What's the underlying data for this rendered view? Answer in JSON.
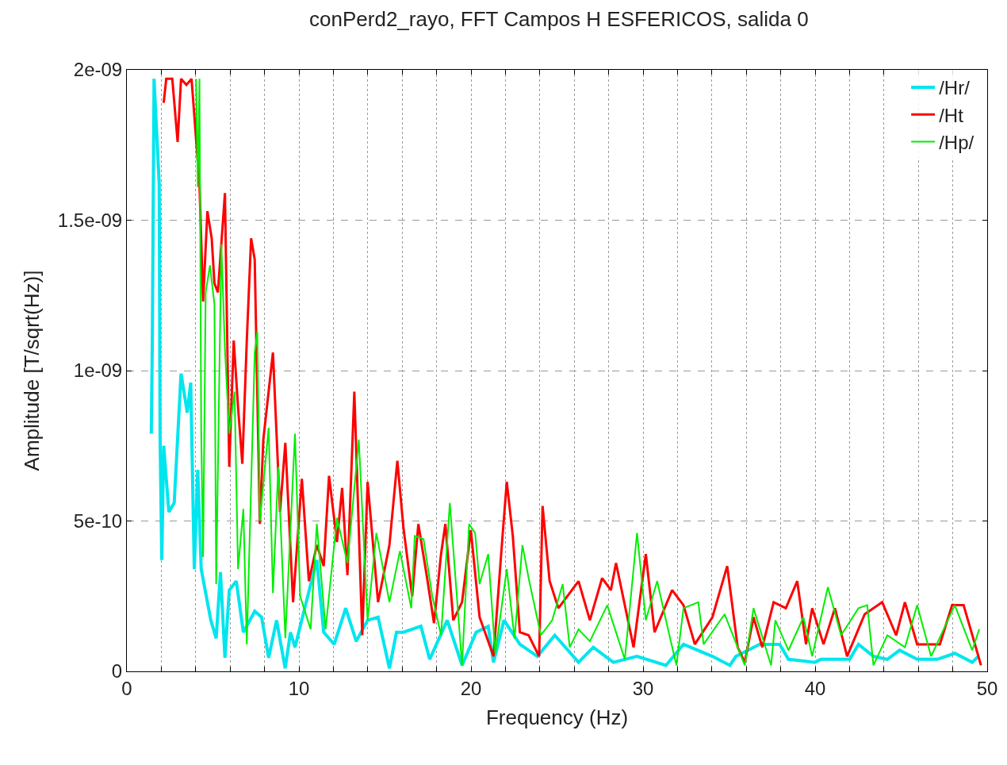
{
  "chart_data": {
    "type": "line",
    "title": "conPerd2_rayo, FFT Campos H ESFERICOS, salida 0",
    "xlabel": "Frequency (Hz)",
    "ylabel": "Amplitude [T/sqrt(Hz)]",
    "xlim": [
      0,
      50
    ],
    "xticks": [
      0,
      {
        "value": 2,
        "label": null
      },
      {
        "value": 4,
        "label": null
      },
      {
        "value": 6,
        "label": null
      },
      {
        "value": 8,
        "label": null
      },
      10,
      {
        "value": 12,
        "label": null
      },
      {
        "value": 14,
        "label": null
      },
      {
        "value": 16,
        "label": null
      },
      {
        "value": 18,
        "label": null
      },
      20,
      {
        "value": 22,
        "label": null
      },
      {
        "value": 24,
        "label": null
      },
      {
        "value": 26,
        "label": null
      },
      {
        "value": 28,
        "label": null
      },
      30,
      {
        "value": 32,
        "label": null
      },
      {
        "value": 34,
        "label": null
      },
      {
        "value": 36,
        "label": null
      },
      {
        "value": 38,
        "label": null
      },
      40,
      {
        "value": 42,
        "label": null
      },
      {
        "value": 44,
        "label": null
      },
      {
        "value": 46,
        "label": null
      },
      {
        "value": 48,
        "label": null
      },
      50
    ],
    "ylim": [
      0,
      2e-09
    ],
    "yticks": [
      0,
      {
        "value": 5e-10,
        "label": "5e-10"
      },
      {
        "value": 1e-09,
        "label": "1e-09"
      },
      {
        "value": 1.5e-09,
        "label": "1.5e-09"
      },
      {
        "value": 2e-09,
        "label": "2e-09"
      }
    ],
    "grid": true,
    "legend": "top right",
    "marker": "none",
    "line_style": "solid",
    "series": [
      {
        "name": "/Hr/",
        "color": "#00e5ee",
        "x": [
          1.42,
          1.48,
          1.58,
          1.88,
          1.93,
          2.03,
          2.14,
          2.44,
          2.75,
          3.15,
          3.51,
          3.71,
          3.92,
          4.12,
          4.32,
          4.88,
          5.19,
          5.44,
          5.7,
          5.95,
          6.36,
          6.77,
          7.43,
          7.83,
          8.24,
          8.7,
          9.2,
          9.51,
          9.77,
          10.38,
          11.04,
          11.44,
          12.05,
          12.72,
          13.33,
          13.99,
          14.6,
          15.26,
          15.67,
          16.07,
          17.09,
          17.6,
          18.62,
          19.48,
          20.3,
          21.0,
          21.31,
          21.92,
          22.84,
          23.86,
          24.87,
          26.25,
          27.11,
          28.28,
          29.65,
          31.33,
          32.35,
          34.03,
          35.05,
          35.4,
          36.78,
          37.94,
          38.45,
          39.98,
          40.34,
          42.01,
          42.52,
          43.39,
          44.2,
          44.91,
          45.93,
          47.1,
          48.12,
          49.13,
          49.49
        ],
        "values": [
          7.9e-10,
          1.1e-09,
          1.97e-09,
          1.62e-09,
          7.8e-10,
          3.7e-10,
          7.5e-10,
          5.3e-10,
          5.6e-10,
          9.9e-10,
          8.6e-10,
          9.6e-10,
          3.4e-10,
          6.7e-10,
          3.4e-10,
          1.7e-10,
          1.1e-10,
          3.3e-10,
          4.5e-11,
          2.7e-10,
          3e-10,
          1.3e-10,
          2e-10,
          1.8e-10,
          4.5e-11,
          1.7e-10,
          1e-11,
          1.3e-10,
          8e-11,
          2.2e-10,
          3.7e-10,
          1.3e-10,
          9e-11,
          2.1e-10,
          1e-10,
          1.7e-10,
          1.8e-10,
          1e-11,
          1.3e-10,
          1.3e-10,
          1.5e-10,
          4e-11,
          1.7e-10,
          2e-11,
          1.3e-10,
          1.5e-10,
          3e-11,
          1.7e-10,
          9e-11,
          5e-11,
          1.2e-10,
          3e-11,
          8e-11,
          3e-11,
          5e-11,
          2e-11,
          9e-11,
          5e-11,
          2e-11,
          5e-11,
          9e-11,
          9e-11,
          4e-11,
          3e-11,
          4e-11,
          4e-11,
          9e-11,
          5e-11,
          4e-11,
          7e-11,
          4e-11,
          4e-11,
          6e-11,
          3e-11,
          5e-11
        ]
      },
      {
        "name": "/Ht",
        "color": "#ff0000",
        "x": [
          2.14,
          2.29,
          2.64,
          2.95,
          3.15,
          3.46,
          3.76,
          4.22,
          4.43,
          4.68,
          4.93,
          5.09,
          5.29,
          5.7,
          5.95,
          6.21,
          6.46,
          6.71,
          6.97,
          7.22,
          7.43,
          7.73,
          7.93,
          8.49,
          8.9,
          9.21,
          9.66,
          10.17,
          10.58,
          11.04,
          11.44,
          11.75,
          12.21,
          12.51,
          12.82,
          13.22,
          13.68,
          13.99,
          14.6,
          15.26,
          15.72,
          16.07,
          16.58,
          16.94,
          17.45,
          17.85,
          18.26,
          18.51,
          18.97,
          19.48,
          19.99,
          20.5,
          21.31,
          21.82,
          22.08,
          22.43,
          22.84,
          23.35,
          23.96,
          24.16,
          24.57,
          25.08,
          26.25,
          26.91,
          27.62,
          28.13,
          28.43,
          29.45,
          30.16,
          30.67,
          31.69,
          32.35,
          33.01,
          34.03,
          34.89,
          35.5,
          35.91,
          36.42,
          36.93,
          37.59,
          38.3,
          38.96,
          39.47,
          39.83,
          40.49,
          41.15,
          41.86,
          42.88,
          43.9,
          44.71,
          45.22,
          45.93,
          47.25,
          47.96,
          48.63,
          49.29,
          49.64
        ],
        "values": [
          1.89e-09,
          1.97e-09,
          1.97e-09,
          1.76e-09,
          1.97e-09,
          1.95e-09,
          1.97e-09,
          1.62e-09,
          1.23e-09,
          1.53e-09,
          1.44e-09,
          1.29e-09,
          1.26e-09,
          1.59e-09,
          6.8e-10,
          1.1e-09,
          8.8e-10,
          6.9e-10,
          1.1e-09,
          1.44e-09,
          1.37e-09,
          4.9e-10,
          7.7e-10,
          1.06e-09,
          5.3e-10,
          7.6e-10,
          2.3e-10,
          6.4e-10,
          3e-10,
          4.2e-10,
          3.5e-10,
          6.5e-10,
          4.3e-10,
          6.1e-10,
          3.2e-10,
          9.3e-10,
          1.2e-10,
          6.3e-10,
          2.3e-10,
          4.2e-10,
          7e-10,
          4.8e-10,
          2.5e-10,
          4.9e-10,
          3.1e-10,
          1.6e-10,
          3.9e-10,
          4.9e-10,
          1.7e-10,
          2.3e-10,
          4.7e-10,
          1.8e-10,
          5e-11,
          4.4e-10,
          6.3e-10,
          4.5e-10,
          1.3e-10,
          1.2e-10,
          5e-11,
          5.5e-10,
          3e-10,
          2.1e-10,
          3e-10,
          1.7e-10,
          3.1e-10,
          2.7e-10,
          3.6e-10,
          8e-11,
          3.9e-10,
          1.3e-10,
          2.7e-10,
          2.2e-10,
          9e-11,
          1.8e-10,
          3.5e-10,
          8e-11,
          3e-11,
          1.8e-10,
          8e-11,
          2.3e-10,
          2.1e-10,
          3e-10,
          9e-11,
          2.1e-10,
          9e-11,
          2.1e-10,
          5e-11,
          1.9e-10,
          2.3e-10,
          1.2e-10,
          2.3e-10,
          9e-11,
          9e-11,
          2.2e-10,
          2.2e-10,
          9e-11,
          2e-11
        ]
      },
      {
        "name": "/Hp/",
        "color": "#00ee00",
        "x": [
          4.02,
          4.12,
          4.22,
          4.32,
          4.43,
          4.58,
          4.83,
          5.09,
          5.19,
          5.49,
          5.7,
          5.95,
          6.26,
          6.46,
          6.77,
          6.97,
          7.43,
          7.58,
          7.73,
          8.24,
          8.49,
          8.8,
          9.21,
          9.77,
          10.07,
          10.68,
          11.04,
          11.55,
          12.21,
          12.82,
          13.48,
          13.99,
          14.5,
          15.26,
          15.87,
          16.53,
          16.73,
          17.24,
          17.75,
          18.26,
          18.77,
          19.48,
          19.89,
          20.24,
          20.5,
          21.0,
          21.41,
          22.08,
          22.53,
          22.99,
          23.35,
          24.06,
          24.72,
          25.33,
          25.74,
          26.25,
          26.91,
          27.92,
          28.94,
          29.65,
          30.16,
          30.82,
          31.33,
          31.94,
          32.35,
          33.21,
          33.52,
          34.74,
          35.91,
          36.42,
          37.44,
          37.69,
          38.45,
          39.32,
          39.83,
          40.74,
          41.51,
          42.52,
          43.03,
          43.39,
          44.2,
          45.22,
          45.93,
          46.74,
          48.12,
          49.13,
          49.54
        ],
        "values": [
          1.97e-09,
          1.61e-09,
          1.97e-09,
          8e-10,
          3.8e-10,
          1.26e-09,
          1.35e-09,
          1.22e-09,
          2.9e-10,
          1.42e-09,
          1.07e-09,
          7.9e-10,
          9.3e-10,
          3.4e-10,
          5.4e-10,
          9e-11,
          1.06e-09,
          1.13e-09,
          5e-10,
          8.1e-10,
          2.6e-10,
          6.8e-10,
          1.1e-10,
          7.9e-10,
          2.5e-10,
          1.4e-10,
          4.9e-10,
          1.4e-10,
          5.1e-10,
          3.6e-10,
          7.7e-10,
          1.7e-10,
          4.6e-10,
          2.3e-10,
          4e-10,
          2.1e-10,
          4.5e-10,
          4.4e-10,
          2.5e-10,
          1.2e-10,
          5.6e-10,
          2e-11,
          4.9e-10,
          4.6e-10,
          2.9e-10,
          3.9e-10,
          6e-11,
          3.4e-10,
          1.1e-10,
          4.2e-10,
          3.1e-10,
          1.2e-10,
          1.7e-10,
          2.9e-10,
          8e-11,
          1.4e-10,
          1e-10,
          2.2e-10,
          4e-11,
          4.6e-10,
          1.7e-10,
          3e-10,
          1.7e-10,
          2e-11,
          2.1e-10,
          2.3e-10,
          9e-11,
          1.9e-10,
          2e-11,
          2.1e-10,
          2e-11,
          1.7e-10,
          7e-11,
          1.8e-10,
          5e-11,
          2.8e-10,
          1.2e-10,
          2.1e-10,
          2.2e-10,
          2e-11,
          1.2e-10,
          8e-11,
          2.2e-10,
          5e-11,
          2.2e-10,
          7e-11,
          1.4e-10
        ]
      }
    ]
  }
}
